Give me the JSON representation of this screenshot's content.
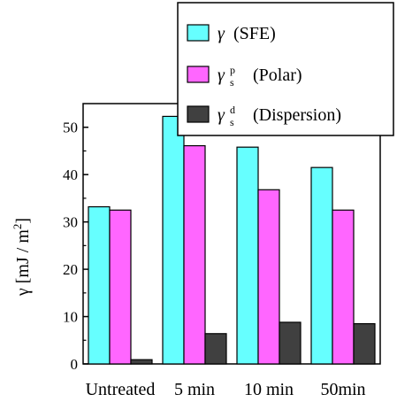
{
  "chart_data": {
    "type": "bar",
    "categories": [
      "Untreated",
      "5 min",
      "10 min",
      "50min"
    ],
    "series": [
      {
        "name": "(SFE)",
        "symbol": "γ",
        "sub": "",
        "sup": "",
        "color": "#66ffff",
        "values": [
          33.2,
          52.3,
          45.8,
          41.5
        ]
      },
      {
        "name": "(Polar)",
        "symbol": "γ",
        "sub": "s",
        "sup": "p",
        "color": "#ff66ff",
        "values": [
          32.5,
          46.1,
          36.8,
          32.5
        ]
      },
      {
        "name": "(Dispersion)",
        "symbol": "γ",
        "sub": "s",
        "sup": "d",
        "color": "#404040",
        "values": [
          0.9,
          6.4,
          8.8,
          8.5
        ]
      }
    ],
    "ylabel_main": "γ [mJ / m",
    "ylabel_sup": "2",
    "ylabel_tail": "]",
    "ylim": [
      0,
      55
    ],
    "yticks": [
      0,
      10,
      20,
      30,
      40,
      50
    ],
    "legend_position": "top-right",
    "grid": false
  }
}
